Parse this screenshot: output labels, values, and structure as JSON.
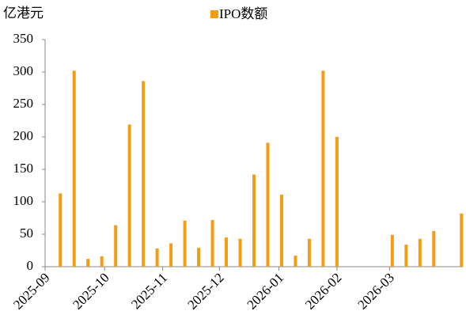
{
  "chart_data": {
    "type": "bar",
    "y_label": "亿港元",
    "categories": [
      null,
      null,
      null,
      null,
      null,
      null,
      null,
      null,
      null,
      null,
      null,
      null,
      null,
      null,
      null,
      null,
      null,
      null,
      null,
      null,
      null,
      null,
      null,
      null,
      null,
      null,
      null,
      null,
      null,
      null
    ],
    "series": [
      {
        "name": "IPO数额",
        "color": "#f59c12",
        "values": [
          113,
          302,
          12,
          16,
          64,
          219,
          286,
          28,
          36,
          71,
          29,
          72,
          45,
          43,
          142,
          191,
          111,
          17,
          43,
          302,
          200,
          null,
          null,
          null,
          49,
          34,
          43,
          55,
          null,
          82
        ]
      }
    ],
    "xlim": [
      -1.1,
      29.1
    ],
    "xticks": [
      {
        "value": -1.1,
        "label": "2025-09"
      },
      {
        "value": 3.2,
        "label": "2025-10"
      },
      {
        "value": 7.4,
        "label": "2025-11"
      },
      {
        "value": 11.5,
        "label": "2025-12"
      },
      {
        "value": 15.8,
        "label": "2026-01"
      },
      {
        "value": 20,
        "label": "2026-02"
      },
      {
        "value": 23.8,
        "label": "2026-03"
      }
    ],
    "ylim": [
      0,
      350
    ],
    "yticks": [
      0,
      50,
      100,
      150,
      200,
      250,
      300,
      350
    ],
    "legend": "top"
  }
}
